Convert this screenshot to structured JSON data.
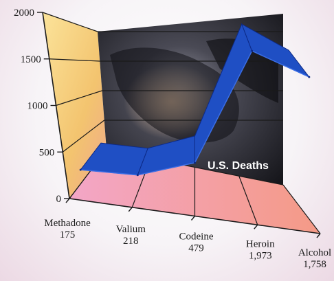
{
  "chart_data": {
    "type": "line",
    "style": "3d-ribbon",
    "categories": [
      "Methadone",
      "Valium",
      "Codeine",
      "Heroin",
      "Alcohol"
    ],
    "value_labels": [
      "175",
      "218",
      "479",
      "1,973",
      "1,758"
    ],
    "values": [
      175,
      218,
      479,
      1973,
      1758
    ],
    "ylim": [
      0,
      2000
    ],
    "yticks": [
      "0",
      "500",
      "1000",
      "1500",
      "2000"
    ],
    "annotation": "U.S. Deaths",
    "colors": {
      "ribbon": "#1f4fc4",
      "ribbon_edge": "#0d2a86",
      "left_wall": "#f6d27a",
      "floor": "#f2a0b6",
      "photo": "#2a2a30"
    }
  }
}
